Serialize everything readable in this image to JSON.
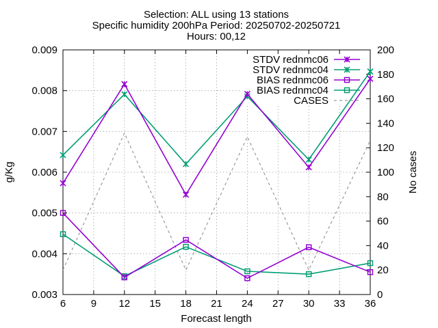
{
  "chart_data": {
    "type": "line",
    "title_lines": [
      "Selection: ALL using    13 stations",
      "Specific humidity 200hPa   Period: 20250702-20250721",
      "Hours: 00,12"
    ],
    "xlabel": "Forecast length",
    "ylabel": "g/Kg",
    "y2label": "No cases",
    "xlim": [
      6,
      36
    ],
    "ylim": [
      0.003,
      0.009
    ],
    "y2lim": [
      0,
      200
    ],
    "xticks": [
      6,
      9,
      12,
      15,
      18,
      21,
      24,
      27,
      30,
      33,
      36
    ],
    "yticks": [
      "0.003",
      "0.004",
      "0.005",
      "0.006",
      "0.007",
      "0.008",
      "0.009"
    ],
    "y2ticks": [
      0,
      20,
      40,
      60,
      80,
      100,
      120,
      140,
      160,
      180,
      200
    ],
    "grid": true,
    "legend_position": "top-right",
    "x": [
      6,
      12,
      18,
      24,
      30,
      36
    ],
    "series": [
      {
        "name": "STDV rednmc06",
        "color": "#9400d3",
        "marker": "x-star",
        "axis": "y1",
        "values": [
          0.00573,
          0.00816,
          0.00545,
          0.00792,
          0.00612,
          0.00829
        ]
      },
      {
        "name": "STDV rednmc04",
        "color": "#009e73",
        "marker": "x-star",
        "axis": "y1",
        "values": [
          0.00642,
          0.00791,
          0.0062,
          0.00786,
          0.00631,
          0.00847
        ]
      },
      {
        "name": "BIAS rednmc06",
        "color": "#9400d3",
        "marker": "square",
        "axis": "y1",
        "values": [
          0.005,
          0.00342,
          0.00434,
          0.0034,
          0.00416,
          0.00355
        ]
      },
      {
        "name": "BIAS rednmc04",
        "color": "#009e73",
        "marker": "square",
        "axis": "y1",
        "values": [
          0.00448,
          0.00345,
          0.00417,
          0.00357,
          0.0035,
          0.00377
        ]
      },
      {
        "name": "CASES",
        "color": "#999999",
        "marker": "none",
        "dashed": true,
        "axis": "y2",
        "values": [
          20,
          132,
          20,
          129,
          20,
          126
        ]
      }
    ]
  }
}
